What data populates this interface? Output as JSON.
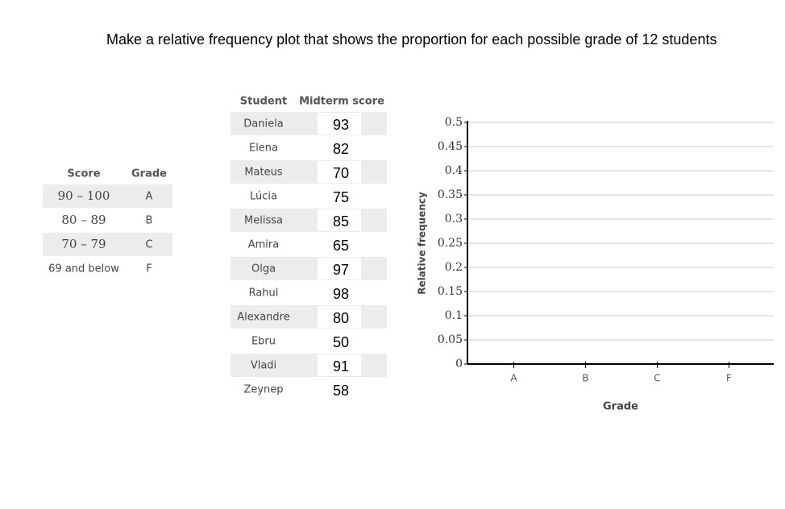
{
  "instruction": "Make a relative frequency plot that shows the proportion for each possible grade of 12 students",
  "grade_table": {
    "headers": [
      "Score",
      "Grade"
    ],
    "rows": [
      [
        "90 – 100",
        "A"
      ],
      [
        "80 – 89",
        "B"
      ],
      [
        "70 – 79",
        "C"
      ],
      [
        "69 and below",
        "F"
      ]
    ]
  },
  "student_table": {
    "headers": [
      "Student",
      "Midterm score"
    ],
    "rows": [
      [
        "Daniela",
        93
      ],
      [
        "Elena",
        82
      ],
      [
        "Mateus",
        70
      ],
      [
        "Lúcia",
        75
      ],
      [
        "Melissa",
        85
      ],
      [
        "Amira",
        65
      ],
      [
        "Olga",
        97
      ],
      [
        "Rahul",
        98
      ],
      [
        "Alexandre",
        80
      ],
      [
        "Ebru",
        50
      ],
      [
        "Vladi",
        91
      ],
      [
        "Zeynep",
        58
      ]
    ]
  },
  "chart_data": {
    "type": "bar",
    "x_label": "Grade",
    "y_label": "Relative frequency",
    "categories": [
      "A",
      "B",
      "C",
      "F"
    ],
    "ylim": [
      0,
      0.5
    ],
    "yticks": [
      0,
      0.05,
      0.1,
      0.15,
      0.2,
      0.25,
      0.3,
      0.35,
      0.4,
      0.45,
      0.5
    ],
    "grid": true
  }
}
